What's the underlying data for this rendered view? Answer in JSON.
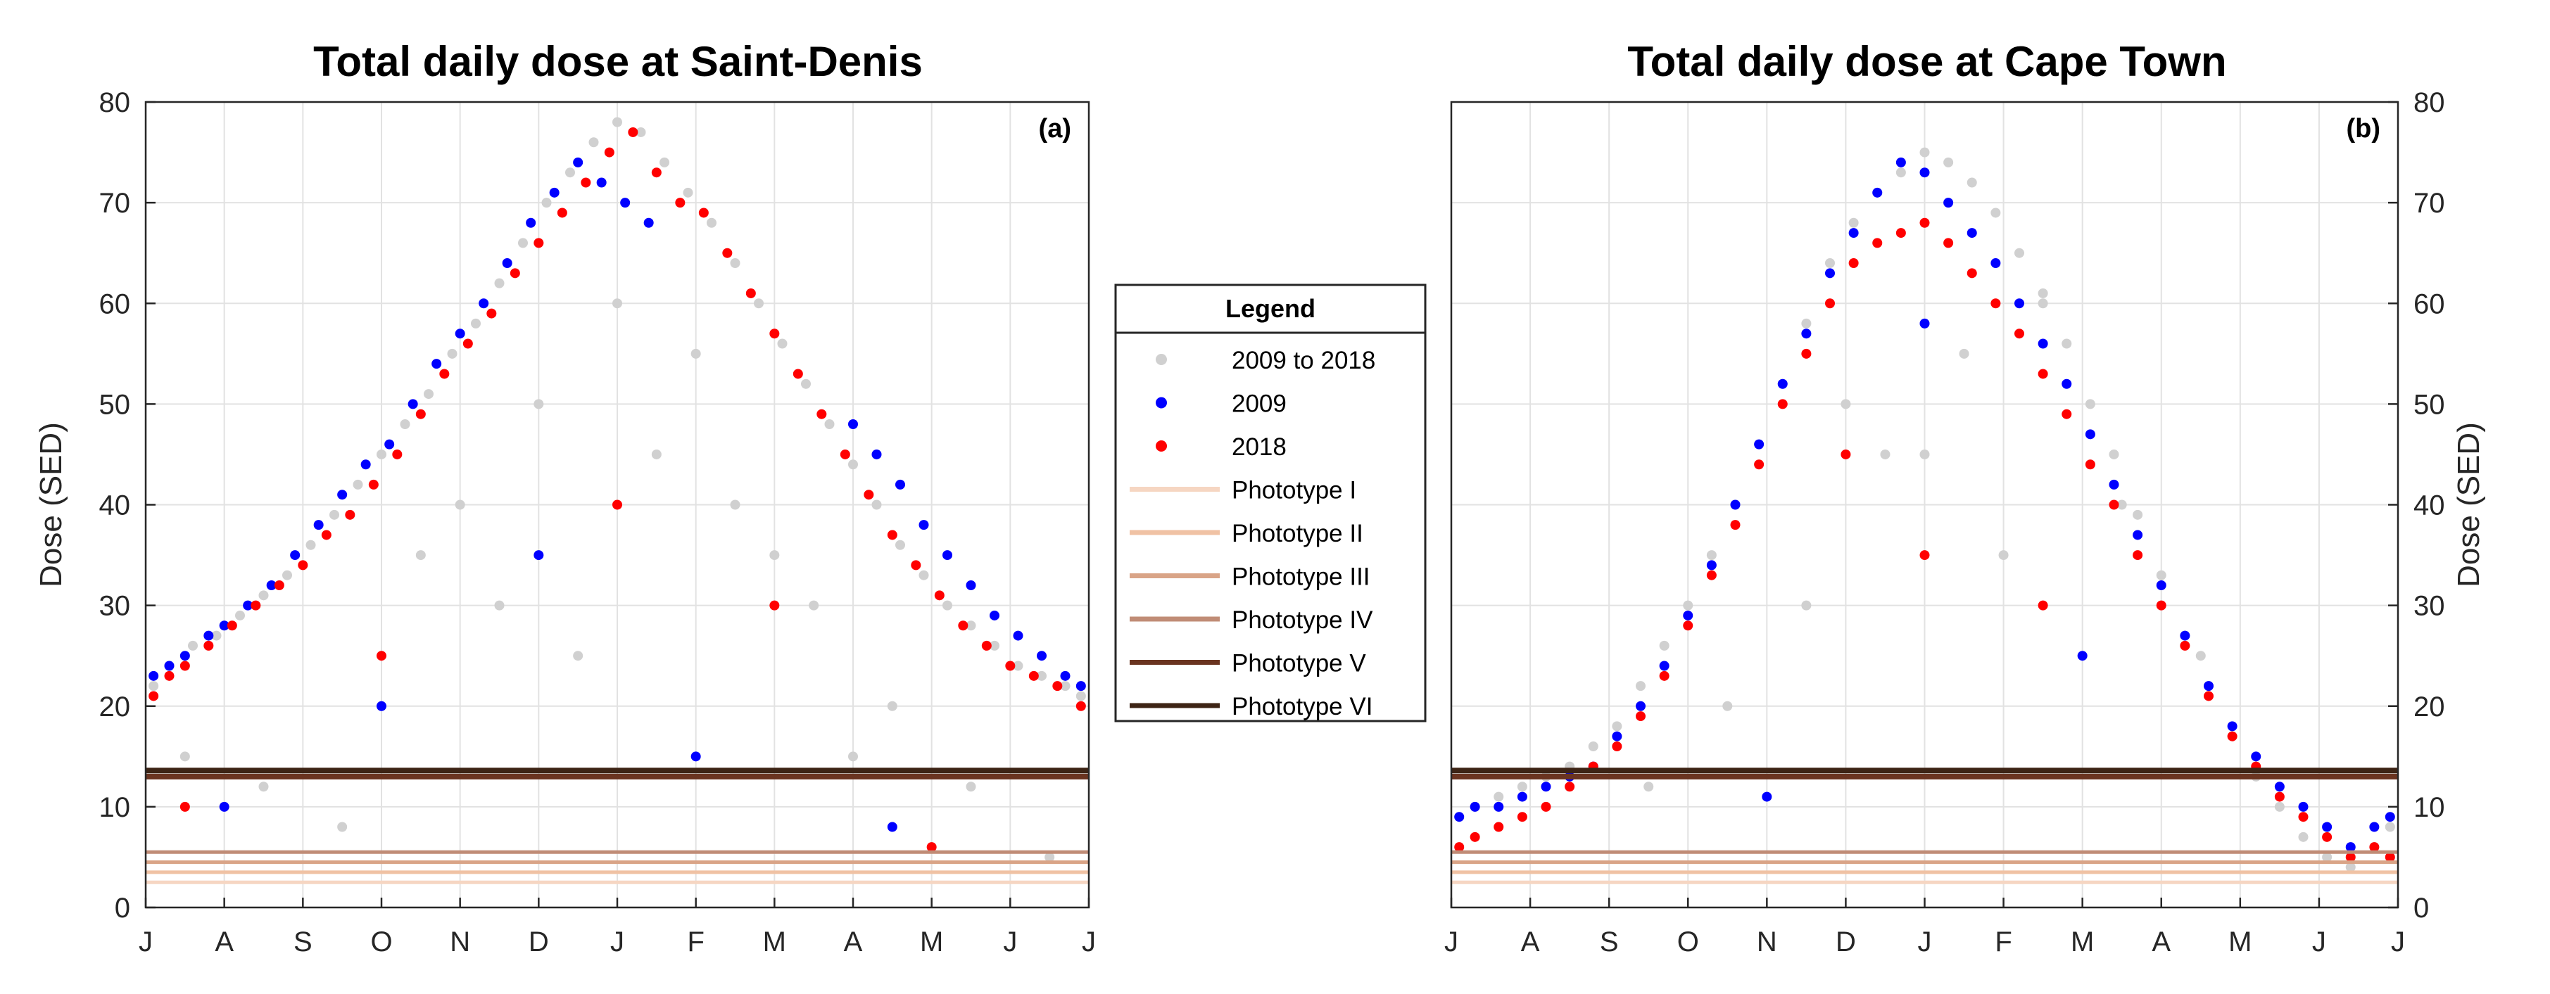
{
  "chart_data": [
    {
      "type": "scatter",
      "title": "Total daily dose at Saint-Denis",
      "panel_label": "(a)",
      "xlabel": "",
      "ylabel": "Dose (SED)",
      "ylim": [
        0,
        80
      ],
      "yticks": [
        0,
        10,
        20,
        30,
        40,
        50,
        60,
        70,
        80
      ],
      "xticks": [
        "J",
        "A",
        "S",
        "O",
        "N",
        "D",
        "J",
        "F",
        "M",
        "A",
        "M",
        "J",
        "J"
      ],
      "x_unit": "months from July",
      "y_axis_side": "left",
      "grid": true,
      "series": [
        {
          "name": "2009 to 2018",
          "color": "#d0d0d0",
          "x": [
            0.1,
            0.3,
            0.6,
            0.9,
            1.2,
            1.5,
            1.8,
            2.1,
            2.4,
            2.7,
            3.0,
            3.3,
            3.6,
            3.9,
            4.2,
            4.5,
            4.8,
            5.1,
            5.4,
            5.7,
            6.0,
            6.3,
            6.6,
            6.9,
            7.2,
            7.5,
            7.8,
            8.1,
            8.4,
            8.7,
            9.0,
            9.3,
            9.6,
            9.9,
            10.2,
            10.5,
            10.8,
            11.1,
            11.4,
            11.7,
            11.9,
            0.5,
            1.5,
            2.5,
            3.5,
            4.5,
            5.5,
            6.5,
            7.5,
            8.5,
            9.5,
            10.5,
            11.5,
            5.0,
            6.0,
            7.0,
            4.0,
            8.0,
            3.0,
            9.0
          ],
          "y": [
            22,
            24,
            26,
            27,
            29,
            31,
            33,
            36,
            39,
            42,
            45,
            48,
            51,
            55,
            58,
            62,
            66,
            70,
            73,
            76,
            78,
            77,
            74,
            71,
            68,
            64,
            60,
            56,
            52,
            48,
            44,
            40,
            36,
            33,
            30,
            28,
            26,
            24,
            23,
            22,
            21,
            15,
            12,
            8,
            35,
            30,
            25,
            45,
            40,
            30,
            20,
            12,
            5,
            50,
            60,
            55,
            40,
            35,
            20,
            15
          ]
        },
        {
          "name": "2009",
          "color": "#0000ff",
          "x": [
            0.1,
            0.3,
            0.5,
            0.8,
            1.0,
            1.3,
            1.6,
            1.9,
            2.2,
            2.5,
            2.8,
            3.1,
            3.4,
            3.7,
            4.0,
            4.3,
            4.6,
            4.9,
            5.2,
            5.5,
            5.8,
            6.1,
            6.4,
            9.0,
            9.3,
            9.6,
            9.9,
            10.2,
            10.5,
            10.8,
            11.1,
            11.4,
            11.7,
            11.9,
            1.0,
            3.0,
            5.0,
            7.0,
            9.5
          ],
          "y": [
            23,
            24,
            25,
            27,
            28,
            30,
            32,
            35,
            38,
            41,
            44,
            46,
            50,
            54,
            57,
            60,
            64,
            68,
            71,
            74,
            72,
            70,
            68,
            48,
            45,
            42,
            38,
            35,
            32,
            29,
            27,
            25,
            23,
            22,
            10,
            20,
            35,
            15,
            8
          ]
        },
        {
          "name": "2018",
          "color": "#ff0000",
          "x": [
            0.1,
            0.3,
            0.5,
            0.8,
            1.1,
            1.4,
            1.7,
            2.0,
            2.3,
            2.6,
            2.9,
            3.2,
            3.5,
            3.8,
            4.1,
            4.4,
            4.7,
            5.0,
            5.3,
            5.6,
            5.9,
            6.2,
            6.5,
            6.8,
            7.1,
            7.4,
            7.7,
            8.0,
            8.3,
            8.6,
            8.9,
            9.2,
            9.5,
            9.8,
            10.1,
            10.4,
            10.7,
            11.0,
            11.3,
            11.6,
            11.9,
            0.5,
            3.0,
            6.0,
            8.0,
            10.0
          ],
          "y": [
            21,
            23,
            24,
            26,
            28,
            30,
            32,
            34,
            37,
            39,
            42,
            45,
            49,
            53,
            56,
            59,
            63,
            66,
            69,
            72,
            75,
            77,
            73,
            70,
            69,
            65,
            61,
            57,
            53,
            49,
            45,
            41,
            37,
            34,
            31,
            28,
            26,
            24,
            23,
            22,
            20,
            10,
            25,
            40,
            30,
            6
          ]
        },
        {
          "name": "Phototype I",
          "color": "#f6d6c2",
          "constant": 2.5
        },
        {
          "name": "Phototype II",
          "color": "#f0c2a4",
          "constant": 3.5
        },
        {
          "name": "Phototype III",
          "color": "#d9a487",
          "constant": 4.5
        },
        {
          "name": "Phototype IV",
          "color": "#c08c76",
          "constant": 5.5
        },
        {
          "name": "Phototype V",
          "color": "#6a3420",
          "constant": 13.0
        },
        {
          "name": "Phototype VI",
          "color": "#3d2415",
          "constant": 13.6
        }
      ]
    },
    {
      "type": "scatter",
      "title": "Total daily dose at Cape Town",
      "panel_label": "(b)",
      "xlabel": "",
      "ylabel": "Dose (SED)",
      "ylim": [
        0,
        80
      ],
      "yticks": [
        0,
        10,
        20,
        30,
        40,
        50,
        60,
        70,
        80
      ],
      "xticks": [
        "J",
        "A",
        "S",
        "O",
        "N",
        "D",
        "J",
        "F",
        "M",
        "A",
        "M",
        "J",
        "J"
      ],
      "x_unit": "months from July",
      "y_axis_side": "right",
      "grid": true,
      "series": [
        {
          "name": "2009 to 2018",
          "color": "#d0d0d0",
          "x": [
            0.1,
            0.3,
            0.6,
            0.9,
            1.2,
            1.5,
            1.8,
            2.1,
            2.4,
            2.7,
            3.0,
            3.3,
            3.6,
            3.9,
            4.2,
            4.5,
            4.8,
            5.1,
            5.4,
            5.7,
            6.0,
            6.3,
            6.6,
            6.9,
            7.2,
            7.5,
            7.8,
            8.1,
            8.4,
            8.7,
            9.0,
            9.3,
            9.6,
            9.9,
            10.2,
            10.5,
            10.8,
            11.1,
            11.4,
            11.7,
            11.9,
            2.5,
            3.5,
            4.5,
            5.5,
            6.5,
            7.5,
            8.5,
            9.5,
            5.0,
            6.0,
            7.0
          ],
          "y": [
            9,
            10,
            11,
            12,
            13,
            14,
            16,
            18,
            22,
            26,
            30,
            35,
            40,
            46,
            52,
            58,
            64,
            68,
            71,
            73,
            75,
            74,
            72,
            69,
            65,
            61,
            56,
            50,
            45,
            39,
            33,
            27,
            22,
            17,
            13,
            10,
            7,
            5,
            4,
            6,
            8,
            12,
            20,
            30,
            45,
            55,
            60,
            40,
            25,
            50,
            45,
            35
          ]
        },
        {
          "name": "2009",
          "color": "#0000ff",
          "x": [
            0.1,
            0.3,
            0.6,
            0.9,
            1.2,
            1.5,
            1.8,
            2.1,
            2.4,
            2.7,
            3.0,
            3.3,
            3.6,
            3.9,
            4.2,
            4.5,
            4.8,
            5.1,
            5.4,
            5.7,
            6.0,
            6.3,
            6.6,
            6.9,
            7.2,
            7.5,
            7.8,
            8.1,
            8.4,
            8.7,
            9.0,
            9.3,
            9.6,
            9.9,
            10.2,
            10.5,
            10.8,
            11.1,
            11.4,
            11.7,
            11.9,
            4.0,
            6.0,
            8.0
          ],
          "y": [
            9,
            10,
            10,
            11,
            12,
            13,
            14,
            17,
            20,
            24,
            29,
            34,
            40,
            46,
            52,
            57,
            63,
            67,
            71,
            74,
            73,
            70,
            67,
            64,
            60,
            56,
            52,
            47,
            42,
            37,
            32,
            27,
            22,
            18,
            15,
            12,
            10,
            8,
            6,
            8,
            9,
            11,
            58,
            25
          ]
        },
        {
          "name": "2018",
          "color": "#ff0000",
          "x": [
            0.1,
            0.3,
            0.6,
            0.9,
            1.2,
            1.5,
            1.8,
            2.1,
            2.4,
            2.7,
            3.0,
            3.3,
            3.6,
            3.9,
            4.2,
            4.5,
            4.8,
            5.1,
            5.4,
            5.7,
            6.0,
            6.3,
            6.6,
            6.9,
            7.2,
            7.5,
            7.8,
            8.1,
            8.4,
            8.7,
            9.0,
            9.3,
            9.6,
            9.9,
            10.2,
            10.5,
            10.8,
            11.1,
            11.4,
            11.7,
            11.9,
            5.0,
            6.0,
            7.5
          ],
          "y": [
            6,
            7,
            8,
            9,
            10,
            12,
            14,
            16,
            19,
            23,
            28,
            33,
            38,
            44,
            50,
            55,
            60,
            64,
            66,
            67,
            68,
            66,
            63,
            60,
            57,
            53,
            49,
            44,
            40,
            35,
            30,
            26,
            21,
            17,
            14,
            11,
            9,
            7,
            5,
            6,
            5,
            45,
            35,
            30
          ]
        },
        {
          "name": "Phototype I",
          "color": "#f6d6c2",
          "constant": 2.5
        },
        {
          "name": "Phototype II",
          "color": "#f0c2a4",
          "constant": 3.5
        },
        {
          "name": "Phototype III",
          "color": "#d9a487",
          "constant": 4.5
        },
        {
          "name": "Phototype IV",
          "color": "#c08c76",
          "constant": 5.5
        },
        {
          "name": "Phototype V",
          "color": "#6a3420",
          "constant": 13.0
        },
        {
          "name": "Phototype VI",
          "color": "#3d2415",
          "constant": 13.6
        }
      ]
    }
  ],
  "legend": {
    "title": "Legend",
    "entries": [
      {
        "label": "2009 to 2018",
        "kind": "dot",
        "color": "#d0d0d0"
      },
      {
        "label": "2009",
        "kind": "dot",
        "color": "#0000ff"
      },
      {
        "label": "2018",
        "kind": "dot",
        "color": "#ff0000"
      },
      {
        "label": "Phototype I",
        "kind": "line",
        "color": "#f6d6c2"
      },
      {
        "label": "Phototype II",
        "kind": "line",
        "color": "#f0c2a4"
      },
      {
        "label": "Phototype III",
        "kind": "line",
        "color": "#d9a487"
      },
      {
        "label": "Phototype IV",
        "kind": "line",
        "color": "#c08c76"
      },
      {
        "label": "Phototype V",
        "kind": "line",
        "color": "#6a3420"
      },
      {
        "label": "Phototype VI",
        "kind": "line",
        "color": "#3d2415"
      }
    ]
  }
}
